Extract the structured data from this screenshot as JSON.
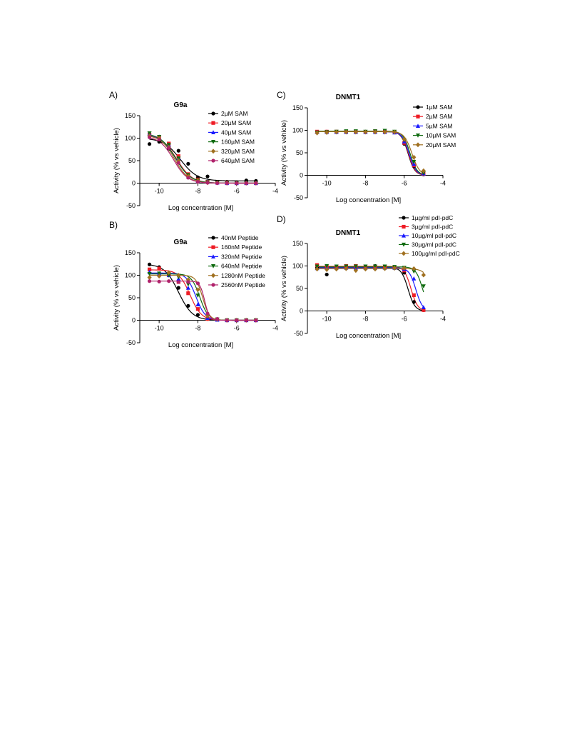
{
  "panels": [
    {
      "letter": "A)"
    },
    {
      "letter": "C)"
    },
    {
      "letter": "B)"
    },
    {
      "letter": "D)"
    }
  ],
  "chart_data": [
    {
      "type": "scatter",
      "title": "G9a",
      "xlabel": "Log concentration [M]",
      "ylabel": "Activity (% vs vehicle)",
      "xlim": [
        -11,
        -4
      ],
      "ylim": [
        -50,
        150
      ],
      "xticks": [
        -10,
        -8,
        -6,
        -4
      ],
      "yticks": [
        -50,
        0,
        50,
        100,
        150
      ],
      "legend_position": "top-right",
      "x": [
        -10.5,
        -10,
        -9.5,
        -9,
        -8.5,
        -8,
        -7.5,
        -7,
        -6.5,
        -6,
        -5.5,
        -5
      ],
      "series": [
        {
          "name": "2µM SAM",
          "color": "#000000",
          "marker": "circle",
          "values": [
            87,
            92,
            77,
            72,
            43,
            13,
            15,
            3,
            3,
            2,
            6,
            5
          ],
          "fit": {
            "top": 100,
            "bottom": 5,
            "logEC50": -8.9,
            "hill": -1.0
          }
        },
        {
          "name": "20µM SAM",
          "color": "#ee1c25",
          "marker": "square",
          "values": [
            108,
            102,
            88,
            60,
            20,
            8,
            3,
            1,
            1,
            0,
            0,
            0
          ],
          "fit": {
            "top": 108,
            "bottom": 0,
            "logEC50": -9.1,
            "hill": -1.1
          }
        },
        {
          "name": "40µM SAM",
          "color": "#1a1aff",
          "marker": "triangle-up",
          "values": [
            110,
            103,
            85,
            55,
            15,
            5,
            3,
            1,
            0,
            0,
            0,
            0
          ],
          "fit": {
            "top": 110,
            "bottom": 0,
            "logEC50": -9.15,
            "hill": -1.1
          }
        },
        {
          "name": "160µM SAM",
          "color": "#106b10",
          "marker": "triangle-down",
          "values": [
            111,
            103,
            85,
            55,
            18,
            6,
            2,
            1,
            0,
            0,
            0,
            0
          ],
          "fit": {
            "top": 111,
            "bottom": 0,
            "logEC50": -9.15,
            "hill": -1.1
          }
        },
        {
          "name": "320µM SAM",
          "color": "#a07020",
          "marker": "diamond",
          "values": [
            105,
            100,
            80,
            50,
            15,
            5,
            1,
            1,
            0,
            0,
            0,
            0
          ],
          "fit": {
            "top": 107,
            "bottom": 0,
            "logEC50": -9.2,
            "hill": -1.2
          }
        },
        {
          "name": "640µM SAM",
          "color": "#b0226b",
          "marker": "circle",
          "values": [
            102,
            97,
            78,
            45,
            12,
            3,
            1,
            0,
            0,
            0,
            0,
            0
          ],
          "fit": {
            "top": 104,
            "bottom": 0,
            "logEC50": -9.25,
            "hill": -1.2
          }
        }
      ]
    },
    {
      "type": "scatter",
      "title": "DNMT1",
      "xlabel": "Log concentration [M]",
      "ylabel": "Activity (% vs vehicle)",
      "xlim": [
        -11,
        -4
      ],
      "ylim": [
        -50,
        150
      ],
      "xticks": [
        -10,
        -8,
        -6,
        -4
      ],
      "yticks": [
        -50,
        0,
        50,
        100,
        150
      ],
      "legend_position": "top-right",
      "x": [
        -10.5,
        -10,
        -9.5,
        -9,
        -8.5,
        -8,
        -7.5,
        -7,
        -6.5,
        -6,
        -5.5,
        -5
      ],
      "series": [
        {
          "name": "1µM SAM",
          "color": "#000000",
          "marker": "circle",
          "values": [
            96,
            97,
            96,
            96,
            97,
            97,
            97,
            98,
            96,
            70,
            20,
            2
          ],
          "fit": {
            "top": 97,
            "bottom": 0,
            "logEC50": -5.8,
            "hill": -2.5
          }
        },
        {
          "name": "2µM SAM",
          "color": "#ee1c25",
          "marker": "square",
          "values": [
            97,
            97,
            97,
            97,
            97,
            96,
            98,
            97,
            96,
            72,
            22,
            3
          ],
          "fit": {
            "top": 97,
            "bottom": 0,
            "logEC50": -5.78,
            "hill": -2.5
          }
        },
        {
          "name": "5µM SAM",
          "color": "#1a1aff",
          "marker": "triangle-up",
          "values": [
            96,
            96,
            96,
            96,
            96,
            96,
            96,
            96,
            95,
            75,
            25,
            4
          ],
          "fit": {
            "top": 97,
            "bottom": 0,
            "logEC50": -5.75,
            "hill": -2.4
          }
        },
        {
          "name": "10µM SAM",
          "color": "#106b10",
          "marker": "triangle-down",
          "values": [
            95,
            96,
            97,
            98,
            98,
            97,
            98,
            99,
            97,
            78,
            30,
            5
          ],
          "fit": {
            "top": 98,
            "bottom": 0,
            "logEC50": -5.7,
            "hill": -2.4
          }
        },
        {
          "name": "20µM SAM",
          "color": "#a07020",
          "marker": "diamond",
          "values": [
            94,
            95,
            96,
            96,
            96,
            96,
            96,
            96,
            96,
            80,
            40,
            10
          ],
          "fit": {
            "top": 97,
            "bottom": 0,
            "logEC50": -5.6,
            "hill": -2.2
          }
        }
      ]
    },
    {
      "type": "scatter",
      "title": "G9a",
      "xlabel": "Log concentration [M]",
      "ylabel": "Activity (% vs vehicle)",
      "xlim": [
        -11,
        -4
      ],
      "ylim": [
        -50,
        150
      ],
      "xticks": [
        -10,
        -8,
        -6,
        -4
      ],
      "yticks": [
        -50,
        0,
        50,
        100,
        150
      ],
      "legend_position": "top-right",
      "x": [
        -10.5,
        -10,
        -9.5,
        -9,
        -8.5,
        -8,
        -7.5,
        -7,
        -6.5,
        -6,
        -5.5,
        -5
      ],
      "series": [
        {
          "name": "40nM Peptide",
          "color": "#000000",
          "marker": "circle",
          "values": [
            124,
            118,
            100,
            72,
            32,
            12,
            3,
            1,
            0,
            0,
            0,
            0
          ],
          "fit": {
            "top": 125,
            "bottom": 0,
            "logEC50": -9.0,
            "hill": -1.2
          }
        },
        {
          "name": "160nM Peptide",
          "color": "#ee1c25",
          "marker": "square",
          "values": [
            113,
            115,
            102,
            85,
            60,
            25,
            3,
            1,
            0,
            0,
            0,
            0
          ],
          "fit": {
            "top": 112,
            "bottom": 0,
            "logEC50": -8.4,
            "hill": -1.5
          }
        },
        {
          "name": "320nM Peptide",
          "color": "#1a1aff",
          "marker": "triangle-up",
          "values": [
            107,
            104,
            100,
            92,
            72,
            35,
            5,
            1,
            0,
            0,
            0,
            0
          ],
          "fit": {
            "top": 105,
            "bottom": 0,
            "logEC50": -8.1,
            "hill": -1.8
          }
        },
        {
          "name": "640nM Peptide",
          "color": "#106b10",
          "marker": "triangle-down",
          "values": [
            103,
            104,
            100,
            96,
            80,
            55,
            8,
            2,
            0,
            0,
            0,
            0
          ],
          "fit": {
            "top": 103,
            "bottom": 0,
            "logEC50": -7.9,
            "hill": -2.0
          }
        },
        {
          "name": "1280nM Peptide",
          "color": "#a07020",
          "marker": "diamond",
          "values": [
            95,
            98,
            106,
            100,
            90,
            68,
            10,
            2,
            0,
            0,
            0,
            0
          ],
          "fit": {
            "top": 100,
            "bottom": 0,
            "logEC50": -7.75,
            "hill": -2.5
          }
        },
        {
          "name": "2560nM Peptide",
          "color": "#b0226b",
          "marker": "circle",
          "values": [
            87,
            86,
            87,
            85,
            85,
            82,
            15,
            3,
            0,
            0,
            0,
            0
          ],
          "fit": {
            "top": 87,
            "bottom": 0,
            "logEC50": -7.65,
            "hill": -3.5
          }
        }
      ]
    },
    {
      "type": "scatter",
      "title": "DNMT1",
      "xlabel": "Log concentration [M]",
      "ylabel": "Activity (% vs vehicle)",
      "xlim": [
        -11,
        -4
      ],
      "ylim": [
        -50,
        150
      ],
      "xticks": [
        -10,
        -8,
        -6,
        -4
      ],
      "yticks": [
        -50,
        0,
        50,
        100,
        150
      ],
      "legend_position": "top-right",
      "x": [
        -10.5,
        -10,
        -9.5,
        -9,
        -8.5,
        -8,
        -7.5,
        -7,
        -6.5,
        -6,
        -5.5,
        -5
      ],
      "series": [
        {
          "name": "1µg/ml pdI-pdC",
          "color": "#000000",
          "marker": "circle",
          "values": [
            96,
            81,
            98,
            99,
            98,
            98,
            100,
            98,
            95,
            85,
            20,
            2
          ],
          "fit": {
            "top": 97,
            "bottom": 0,
            "logEC50": -5.8,
            "hill": -2.5
          }
        },
        {
          "name": "3µg/ml pdI-pdC",
          "color": "#ee1c25",
          "marker": "square",
          "values": [
            102,
            98,
            99,
            100,
            100,
            99,
            99,
            99,
            97,
            90,
            35,
            2
          ],
          "fit": {
            "top": 99,
            "bottom": 0,
            "logEC50": -5.65,
            "hill": -2.5
          }
        },
        {
          "name": "10µg/ml pdI-pdC",
          "color": "#1a1aff",
          "marker": "triangle-up",
          "values": [
            95,
            96,
            96,
            96,
            96,
            96,
            96,
            96,
            96,
            93,
            72,
            8
          ],
          "fit": {
            "top": 96,
            "bottom": 0,
            "logEC50": -5.4,
            "hill": -2.5
          }
        },
        {
          "name": "30µg/ml pdI-pdC",
          "color": "#106b10",
          "marker": "triangle-down",
          "values": [
            99,
            100,
            99,
            99,
            99,
            99,
            99,
            99,
            98,
            96,
            88,
            55
          ],
          "fit": {
            "top": 98,
            "bottom": 0,
            "logEC50": -5.05,
            "hill": -2.5
          }
        },
        {
          "name": "100µg/ml pdI-pdC",
          "color": "#a07020",
          "marker": "diamond",
          "values": [
            93,
            92,
            93,
            94,
            90,
            93,
            93,
            94,
            95,
            95,
            94,
            80
          ],
          "fit": {
            "top": 94,
            "bottom": 0,
            "logEC50": -4.5,
            "hill": -2.0
          }
        }
      ]
    }
  ]
}
